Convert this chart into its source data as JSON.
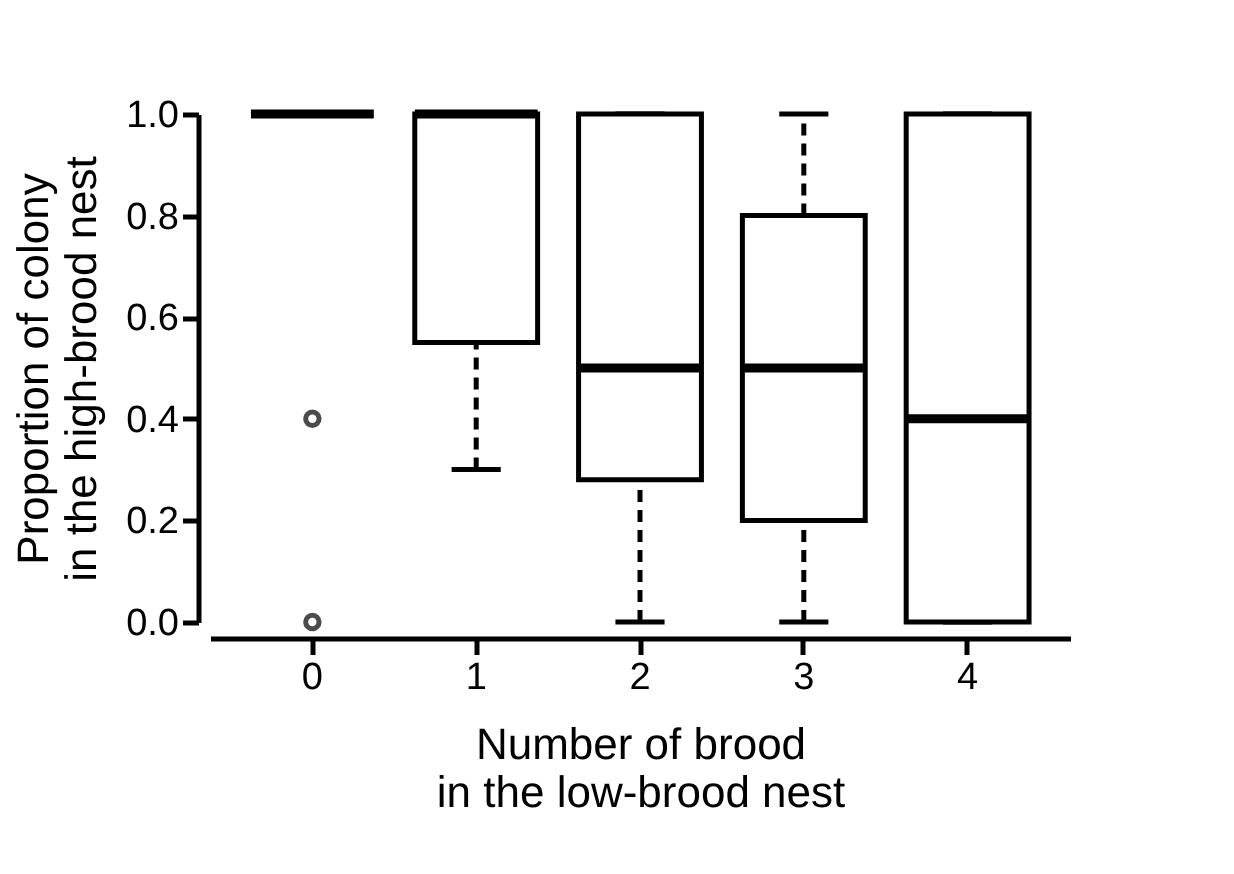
{
  "chart_data": {
    "type": "box",
    "xlabel": "Number of brood\nin the low-brood nest",
    "ylabel": "Proportion of colony\nin the high-brood nest",
    "categories": [
      "0",
      "1",
      "2",
      "3",
      "4"
    ],
    "boxes": [
      {
        "low": 1,
        "q1": 1,
        "median": 1,
        "q3": 1,
        "high": 1,
        "outliers": [
          0.4,
          0
        ]
      },
      {
        "low": 0.3,
        "q1": 0.55,
        "median": 1,
        "q3": 1,
        "high": 1
      },
      {
        "low": 0,
        "q1": 0.28,
        "median": 0.5,
        "q3": 1,
        "high": 1
      },
      {
        "low": 0,
        "q1": 0.2,
        "median": 0.5,
        "q3": 0.8,
        "high": 1
      },
      {
        "low": 0,
        "q1": 0,
        "median": 0.4,
        "q3": 1,
        "high": 1
      }
    ],
    "ylim": [
      0,
      1
    ],
    "yticks": [
      {
        "value": 0,
        "label": "0.0"
      },
      {
        "value": 0.2,
        "label": "0.2"
      },
      {
        "value": 0.4,
        "label": "0.4"
      },
      {
        "value": 0.6,
        "label": "0.6"
      },
      {
        "value": 0.8,
        "label": "0.8"
      },
      {
        "value": 1,
        "label": "1.0"
      }
    ],
    "grid": false
  }
}
